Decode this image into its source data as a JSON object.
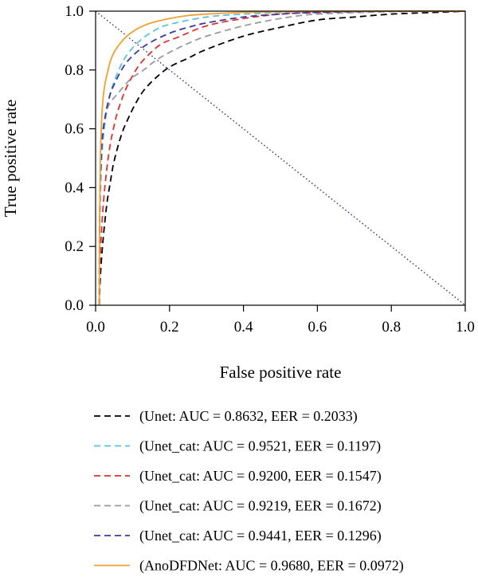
{
  "chart_data": {
    "type": "line",
    "title": "",
    "xlabel": "False positive rate",
    "ylabel": "True positive rate",
    "xlim": [
      0,
      1
    ],
    "ylim": [
      0,
      1
    ],
    "x_ticks": [
      "0.0",
      "0.2",
      "0.4",
      "0.6",
      "0.8",
      "1.0"
    ],
    "y_ticks": [
      "0.0",
      "0.2",
      "0.4",
      "0.6",
      "0.8",
      "1.0"
    ],
    "grid": false,
    "legend_position": "bottom",
    "reference_line": {
      "style": "dotted",
      "color": "#2e2e6e",
      "x": [
        0,
        1
      ],
      "y": [
        1,
        0
      ]
    },
    "series": [
      {
        "name": "(Unet: AUC = 0.8632, EER = 0.2033)",
        "color": "#000000",
        "dash": "dashed",
        "x": [
          0.01,
          0.013,
          0.02,
          0.03,
          0.04,
          0.05,
          0.07,
          0.09,
          0.11,
          0.13,
          0.16,
          0.2,
          0.25,
          0.3,
          0.4,
          0.5,
          0.6,
          0.7,
          0.8,
          0.9,
          1.0
        ],
        "y": [
          0.0,
          0.1,
          0.22,
          0.34,
          0.42,
          0.49,
          0.58,
          0.64,
          0.69,
          0.73,
          0.77,
          0.81,
          0.84,
          0.87,
          0.915,
          0.945,
          0.97,
          0.98,
          0.99,
          0.995,
          1.0
        ]
      },
      {
        "name": "(Unet_cat: AUC = 0.9521, EER = 0.1197)",
        "color": "#5bc0de",
        "dash": "dashed",
        "x": [
          0.01,
          0.011,
          0.015,
          0.02,
          0.03,
          0.04,
          0.05,
          0.07,
          0.09,
          0.12,
          0.16,
          0.2,
          0.3,
          0.4,
          0.5,
          0.6,
          0.8,
          1.0
        ],
        "y": [
          0.0,
          0.25,
          0.45,
          0.56,
          0.66,
          0.72,
          0.76,
          0.82,
          0.86,
          0.9,
          0.935,
          0.955,
          0.98,
          0.99,
          0.995,
          0.998,
          1.0,
          1.0
        ]
      },
      {
        "name": "(Unet_cat: AUC = 0.9200, EER = 0.1547)",
        "color": "#e03030",
        "dash": "dashed",
        "x": [
          0.01,
          0.012,
          0.02,
          0.03,
          0.04,
          0.05,
          0.06,
          0.08,
          0.1,
          0.12,
          0.15,
          0.18,
          0.22,
          0.3,
          0.4,
          0.5,
          0.6,
          0.8,
          1.0
        ],
        "y": [
          0.0,
          0.15,
          0.33,
          0.46,
          0.55,
          0.61,
          0.66,
          0.73,
          0.78,
          0.82,
          0.86,
          0.89,
          0.91,
          0.95,
          0.975,
          0.99,
          0.995,
          1.0,
          1.0
        ]
      },
      {
        "name": "(Unet_cat: AUC = 0.9219, EER = 0.1672)",
        "color": "#9a9a9a",
        "dash": "dashed",
        "x": [
          0.01,
          0.011,
          0.015,
          0.02,
          0.03,
          0.04,
          0.06,
          0.08,
          0.1,
          0.13,
          0.16,
          0.2,
          0.25,
          0.3,
          0.4,
          0.5,
          0.6,
          0.8,
          1.0
        ],
        "y": [
          0.0,
          0.3,
          0.52,
          0.6,
          0.66,
          0.69,
          0.72,
          0.75,
          0.775,
          0.8,
          0.83,
          0.86,
          0.89,
          0.915,
          0.95,
          0.975,
          0.99,
          0.998,
          1.0
        ]
      },
      {
        "name": "(Unet_cat: AUC = 0.9441, EER = 0.1296)",
        "color": "#3a3aa0",
        "dash": "dashed",
        "x": [
          0.01,
          0.011,
          0.015,
          0.02,
          0.03,
          0.04,
          0.05,
          0.07,
          0.09,
          0.12,
          0.15,
          0.2,
          0.25,
          0.3,
          0.4,
          0.5,
          0.6,
          0.8,
          1.0
        ],
        "y": [
          0.0,
          0.3,
          0.5,
          0.59,
          0.67,
          0.72,
          0.75,
          0.8,
          0.835,
          0.87,
          0.895,
          0.925,
          0.945,
          0.96,
          0.98,
          0.99,
          0.996,
          1.0,
          1.0
        ]
      },
      {
        "name": "(AnoDFDNet: AUC = 0.9680, EER = 0.0972)",
        "color": "#f0a030",
        "dash": "solid",
        "x": [
          0.01,
          0.011,
          0.013,
          0.016,
          0.02,
          0.025,
          0.03,
          0.04,
          0.05,
          0.06,
          0.08,
          0.1,
          0.12,
          0.15,
          0.2,
          0.25,
          0.3,
          0.4,
          0.5,
          0.6,
          0.8,
          1.0
        ],
        "y": [
          0.0,
          0.3,
          0.5,
          0.62,
          0.7,
          0.75,
          0.78,
          0.83,
          0.86,
          0.88,
          0.91,
          0.93,
          0.945,
          0.96,
          0.975,
          0.985,
          0.99,
          0.996,
          0.998,
          1.0,
          1.0,
          1.0
        ]
      }
    ]
  }
}
